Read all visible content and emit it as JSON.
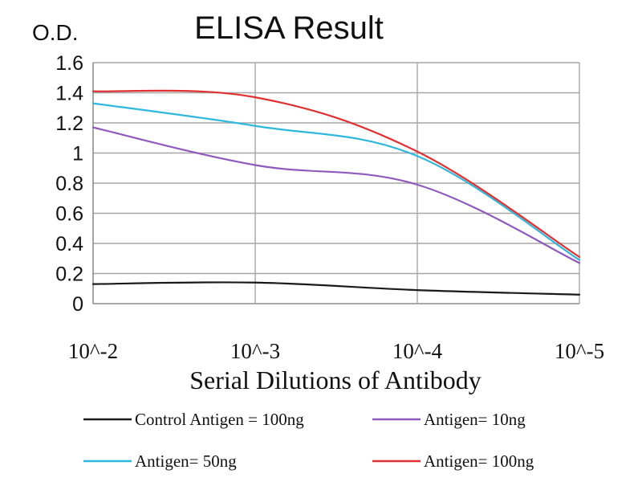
{
  "chart_data": {
    "type": "line",
    "title": "ELISA Result",
    "ylabel": "O.D.",
    "xlabel": "Serial Dilutions of Antibody",
    "x": [
      "10^-2",
      "10^-3",
      "10^-4",
      "10^-5"
    ],
    "y_ticks": [
      "0",
      "0.2",
      "0.4",
      "0.6",
      "0.8",
      "1",
      "1.2",
      "1.4",
      "1.6"
    ],
    "ylim": [
      0,
      1.6
    ],
    "grid": true,
    "legend_position": "bottom",
    "series": [
      {
        "name": "Control Antigen = 100ng",
        "color": "#1a1a1a",
        "values": [
          0.13,
          0.14,
          0.09,
          0.06
        ]
      },
      {
        "name": "Antigen= 10ng",
        "color": "#8e5bbd",
        "values": [
          1.17,
          0.92,
          0.79,
          0.27
        ]
      },
      {
        "name": "Antigen= 50ng",
        "color": "#2fb7dc",
        "values": [
          1.33,
          1.18,
          0.98,
          0.29
        ]
      },
      {
        "name": "Antigen= 100ng",
        "color": "#e03030",
        "values": [
          1.41,
          1.37,
          1.01,
          0.31
        ]
      }
    ]
  }
}
